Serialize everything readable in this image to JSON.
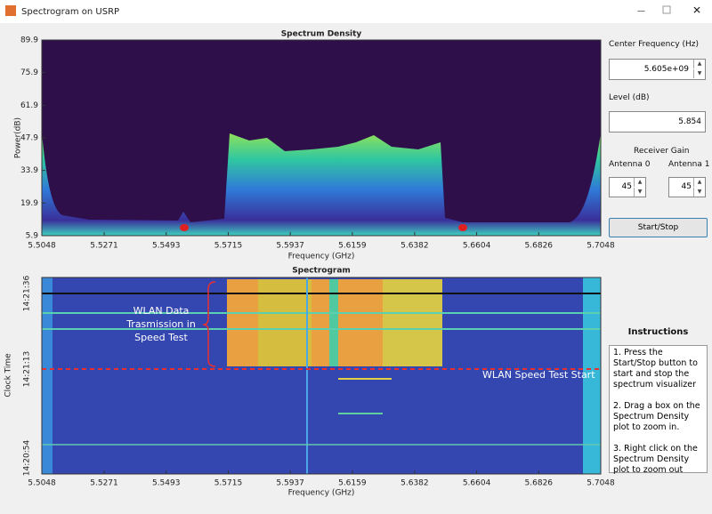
{
  "window": {
    "title": "Spectrogram on USRP"
  },
  "density": {
    "title": "Spectrum Density",
    "xlabel": "Frequency (GHz)",
    "ylabel": "Power(dB)",
    "xlim": [
      5.5048,
      5.7048
    ],
    "xticks": [
      5.5048,
      5.5271,
      5.5493,
      5.5715,
      5.5937,
      5.6159,
      5.6382,
      5.6604,
      5.6826,
      5.7048
    ],
    "ylim": [
      5.9,
      89.9
    ],
    "yticks": [
      5.9,
      19.9,
      33.9,
      47.9,
      61.9,
      75.9,
      89.9
    ]
  },
  "spectrogram": {
    "title": "Spectrogram",
    "xlabel": "Frequency (GHz)",
    "ylabel": "Clock Time",
    "xlim": [
      5.5048,
      5.7048
    ],
    "xticks": [
      5.5048,
      5.5271,
      5.5493,
      5.5715,
      5.5937,
      5.6159,
      5.6382,
      5.6604,
      5.6826,
      5.7048
    ],
    "time_ticks": [
      "14:21:36",
      "14:21:13",
      "14:20:54"
    ],
    "annotations": [
      "WLAN Data",
      "Trasmission in",
      "Speed Test",
      "WLAN Speed Test Start"
    ]
  },
  "controls": {
    "center_frequency_label": "Center Frequency (Hz)",
    "center_frequency": "5.605e+09",
    "level_label": "Level (dB)",
    "level": "5.854",
    "gain_label": "Receiver Gain",
    "antenna0_label": "Antenna 0",
    "antenna0": 45,
    "antenna1_label": "Antenna 1",
    "antenna1": 45,
    "button": "Start/Stop"
  },
  "instructions": {
    "title": "Instructions",
    "items": [
      "1. Press the Start/Stop button to start and stop the spectrum visualizer",
      "2. Drag a box on the Spectrum Density plot to zoom in.",
      "3. Right click on the Spectrum Density plot to zoom out"
    ]
  }
}
